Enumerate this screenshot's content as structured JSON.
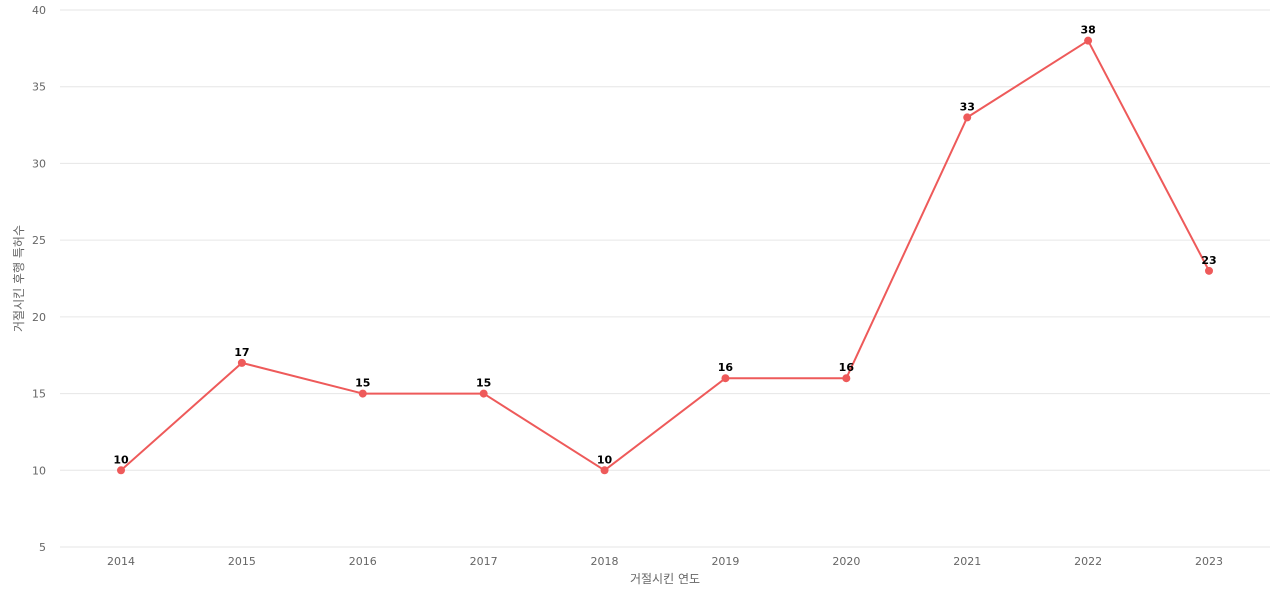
{
  "chart_data": {
    "type": "line",
    "title": "",
    "xlabel": "거절시킨 연도",
    "ylabel": "거절시킨 후행 특허수",
    "categories": [
      "2014",
      "2015",
      "2016",
      "2017",
      "2018",
      "2019",
      "2020",
      "2021",
      "2022",
      "2023"
    ],
    "series": [
      {
        "values": [
          10,
          17,
          15,
          15,
          10,
          16,
          16,
          33,
          38,
          23
        ],
        "color": "#ee5a5a"
      }
    ],
    "ylim": [
      5,
      40
    ],
    "yticks": [
      5,
      10,
      15,
      20,
      25,
      30,
      35,
      40
    ],
    "grid": true,
    "data_labels": true
  }
}
